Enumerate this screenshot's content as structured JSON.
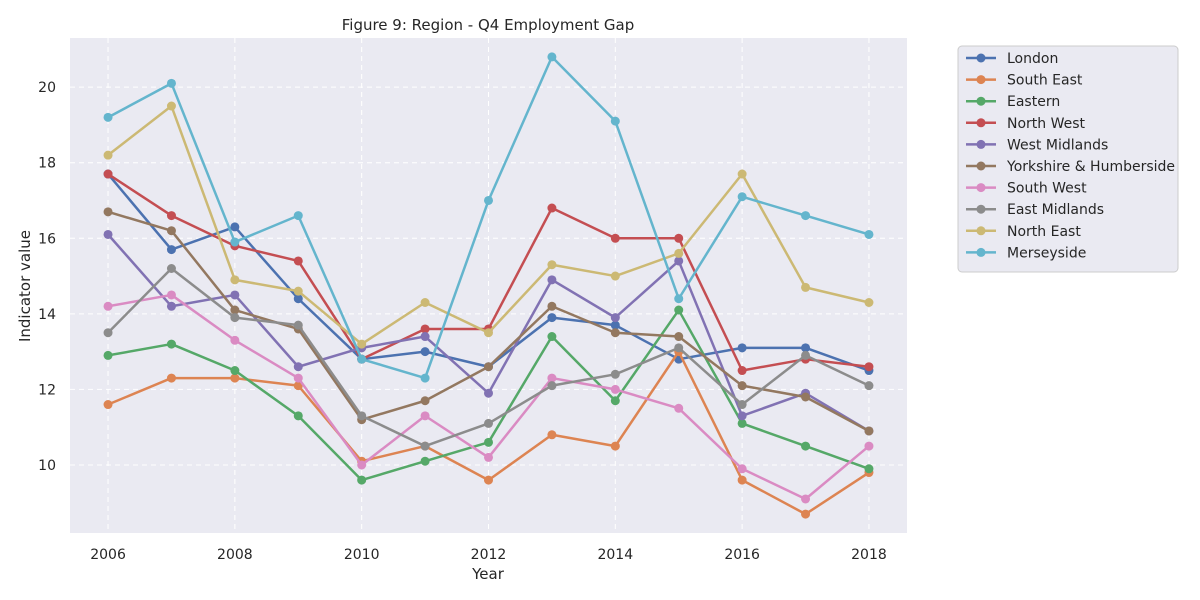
{
  "chart_data": {
    "type": "line",
    "title": "Figure 9: Region - Q4 Employment Gap",
    "xlabel": "Year",
    "ylabel": "Indicator value",
    "x": [
      2006,
      2007,
      2008,
      2009,
      2010,
      2011,
      2012,
      2013,
      2014,
      2015,
      2016,
      2017,
      2018
    ],
    "xlim": [
      2005.4,
      2018.6
    ],
    "ylim": [
      8.2,
      21.3
    ],
    "xticks": [
      2006,
      2008,
      2010,
      2012,
      2014,
      2016,
      2018
    ],
    "yticks": [
      10,
      12,
      14,
      16,
      18,
      20
    ],
    "grid": true,
    "legend_position": "outside-top-right",
    "series": [
      {
        "name": "London",
        "color": "#4c72b0",
        "values": [
          17.7,
          15.7,
          16.3,
          14.4,
          12.8,
          13.0,
          12.6,
          13.9,
          13.7,
          12.8,
          13.1,
          13.1,
          12.5
        ]
      },
      {
        "name": "South East",
        "color": "#dd8452",
        "values": [
          11.6,
          12.3,
          12.3,
          12.1,
          10.1,
          10.5,
          9.6,
          10.8,
          10.5,
          13.0,
          9.6,
          8.7,
          9.8
        ]
      },
      {
        "name": "Eastern",
        "color": "#55a868",
        "values": [
          12.9,
          13.2,
          12.5,
          11.3,
          9.6,
          10.1,
          10.6,
          13.4,
          11.7,
          14.1,
          11.1,
          10.5,
          9.9
        ]
      },
      {
        "name": "North West",
        "color": "#c44e52",
        "values": [
          17.7,
          16.6,
          15.8,
          15.4,
          12.8,
          13.6,
          13.6,
          16.8,
          16.0,
          16.0,
          12.5,
          12.8,
          12.6
        ]
      },
      {
        "name": "West Midlands",
        "color": "#8172b3",
        "values": [
          16.1,
          14.2,
          14.5,
          12.6,
          13.1,
          13.4,
          11.9,
          14.9,
          13.9,
          15.4,
          11.3,
          11.9,
          10.9
        ]
      },
      {
        "name": "Yorkshire & Humberside",
        "color": "#937860",
        "values": [
          16.7,
          16.2,
          14.1,
          13.6,
          11.2,
          11.7,
          12.6,
          14.2,
          13.5,
          13.4,
          12.1,
          11.8,
          10.9
        ]
      },
      {
        "name": "South West",
        "color": "#da8bc3",
        "values": [
          14.2,
          14.5,
          13.3,
          12.3,
          10.0,
          11.3,
          10.2,
          12.3,
          12.0,
          11.5,
          9.9,
          9.1,
          10.5
        ]
      },
      {
        "name": "East Midlands",
        "color": "#8c8c8c",
        "values": [
          13.5,
          15.2,
          13.9,
          13.7,
          11.3,
          10.5,
          11.1,
          12.1,
          12.4,
          13.1,
          11.6,
          12.9,
          12.1
        ]
      },
      {
        "name": "North East",
        "color": "#ccb974",
        "values": [
          18.2,
          19.5,
          14.9,
          14.6,
          13.2,
          14.3,
          13.5,
          15.3,
          15.0,
          15.6,
          17.7,
          14.7,
          14.3
        ]
      },
      {
        "name": "Merseyside",
        "color": "#64b5cd",
        "values": [
          19.2,
          20.1,
          15.9,
          16.6,
          12.8,
          12.3,
          17.0,
          20.8,
          19.1,
          14.4,
          17.1,
          16.6,
          16.1
        ]
      }
    ]
  }
}
